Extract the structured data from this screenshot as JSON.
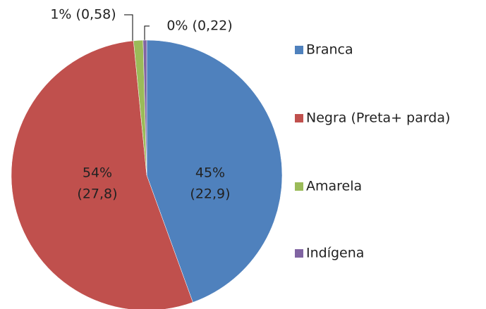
{
  "chart_data": {
    "type": "pie",
    "categories": [
      "Branca",
      "Negra (Preta+ parda)",
      "Amarela",
      "Indígena"
    ],
    "values": [
      22.9,
      27.8,
      0.58,
      0.22
    ],
    "value_labels": [
      [
        "45%",
        "(22,9)"
      ],
      [
        "54%",
        "(27,8)"
      ],
      [
        "1% (0,58)"
      ],
      [
        "0% (0,22)"
      ]
    ],
    "colors": [
      "#4f81bd",
      "#c0504d",
      "#9bbb59",
      "#8064a2"
    ],
    "legend": "right"
  }
}
